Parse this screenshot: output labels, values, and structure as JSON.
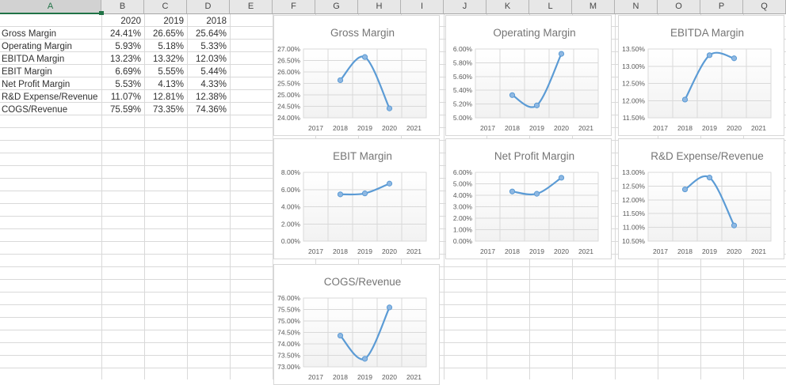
{
  "sheet": {
    "column_labels": [
      "A",
      "B",
      "C",
      "D",
      "E",
      "F",
      "G",
      "H",
      "I",
      "J",
      "K",
      "L",
      "M",
      "N",
      "O",
      "P",
      "Q"
    ],
    "selected_column": "A"
  },
  "table": {
    "year_headers": [
      "2020",
      "2019",
      "2018"
    ],
    "rows": [
      {
        "label": "Gross Margin",
        "values": [
          "24.41%",
          "26.65%",
          "25.64%"
        ]
      },
      {
        "label": "Operating Margin",
        "values": [
          "5.93%",
          "5.18%",
          "5.33%"
        ]
      },
      {
        "label": "EBITDA Margin",
        "values": [
          "13.23%",
          "13.32%",
          "12.03%"
        ]
      },
      {
        "label": "EBIT Margin",
        "values": [
          "6.69%",
          "5.55%",
          "5.44%"
        ]
      },
      {
        "label": "Net Profit Margin",
        "values": [
          "5.53%",
          "4.13%",
          "4.33%"
        ]
      },
      {
        "label": "R&D Expense/Revenue",
        "values": [
          "11.07%",
          "12.81%",
          "12.38%"
        ]
      },
      {
        "label": "COGS/Revenue",
        "values": [
          "75.59%",
          "73.35%",
          "74.36%"
        ]
      }
    ]
  },
  "chart_data": [
    {
      "type": "line",
      "title": "Gross Margin",
      "categories": [
        "2017",
        "2018",
        "2019",
        "2020",
        "2021"
      ],
      "series": [
        {
          "name": "Gross Margin",
          "values": [
            null,
            25.64,
            26.65,
            24.41,
            null
          ]
        }
      ],
      "ylim": [
        24.0,
        27.0
      ],
      "ytick_step": 0.5,
      "tick_format": "percent-2dp",
      "grid": true,
      "legend": "none"
    },
    {
      "type": "line",
      "title": "Operating Margin",
      "categories": [
        "2017",
        "2018",
        "2019",
        "2020",
        "2021"
      ],
      "series": [
        {
          "name": "Operating Margin",
          "values": [
            null,
            5.33,
            5.18,
            5.93,
            null
          ]
        }
      ],
      "ylim": [
        5.0,
        6.0
      ],
      "ytick_step": 0.2,
      "tick_format": "percent-2dp",
      "grid": true,
      "legend": "none"
    },
    {
      "type": "line",
      "title": "EBITDA Margin",
      "categories": [
        "2017",
        "2018",
        "2019",
        "2020",
        "2021"
      ],
      "series": [
        {
          "name": "EBITDA Margin",
          "values": [
            null,
            12.03,
            13.32,
            13.23,
            null
          ]
        }
      ],
      "ylim": [
        11.5,
        13.5
      ],
      "ytick_step": 0.5,
      "tick_format": "percent-2dp",
      "grid": true,
      "legend": "none"
    },
    {
      "type": "line",
      "title": "EBIT Margin",
      "categories": [
        "2017",
        "2018",
        "2019",
        "2020",
        "2021"
      ],
      "series": [
        {
          "name": "EBIT Margin",
          "values": [
            null,
            5.44,
            5.55,
            6.69,
            null
          ]
        }
      ],
      "ylim": [
        0.0,
        8.0
      ],
      "ytick_step": 2.0,
      "tick_format": "percent-2dp",
      "grid": true,
      "legend": "none"
    },
    {
      "type": "line",
      "title": "Net Profit Margin",
      "categories": [
        "2017",
        "2018",
        "2019",
        "2020",
        "2021"
      ],
      "series": [
        {
          "name": "Net Profit Margin",
          "values": [
            null,
            4.33,
            4.13,
            5.53,
            null
          ]
        }
      ],
      "ylim": [
        0.0,
        6.0
      ],
      "ytick_step": 1.0,
      "tick_format": "percent-2dp",
      "grid": true,
      "legend": "none"
    },
    {
      "type": "line",
      "title": "R&D Expense/Revenue",
      "categories": [
        "2017",
        "2018",
        "2019",
        "2020",
        "2021"
      ],
      "series": [
        {
          "name": "R&D Expense/Revenue",
          "values": [
            null,
            12.38,
            12.81,
            11.07,
            null
          ]
        }
      ],
      "ylim": [
        10.5,
        13.0
      ],
      "ytick_step": 0.5,
      "tick_format": "percent-2dp",
      "grid": true,
      "legend": "none"
    },
    {
      "type": "line",
      "title": "COGS/Revenue",
      "categories": [
        "2017",
        "2018",
        "2019",
        "2020",
        "2021"
      ],
      "series": [
        {
          "name": "COGS/Revenue",
          "values": [
            null,
            74.36,
            73.35,
            75.59,
            null
          ]
        }
      ],
      "ylim": [
        73.0,
        76.0
      ],
      "ytick_step": 0.5,
      "tick_format": "percent-2dp",
      "grid": true,
      "legend": "none"
    }
  ],
  "colors": {
    "accent_line": "#5B9BD5",
    "marker_fill": "#8FB8E2",
    "chart_title": "#757575",
    "axis_text": "#595959",
    "chart_gridline": "#D9D9D9",
    "sheet_gridline": "#D9D9D9",
    "selected_green": "#217346",
    "header_bg": "#E7E7E7",
    "selected_header_bg": "#D2D2D2",
    "cell_text": "#303030"
  }
}
